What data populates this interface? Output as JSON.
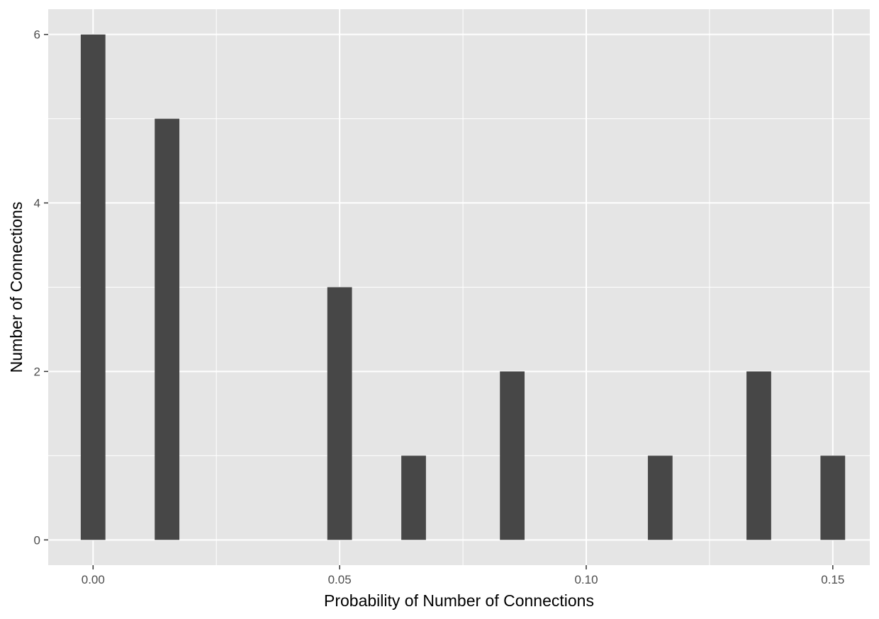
{
  "chart_data": {
    "type": "bar",
    "title": "",
    "xlabel": "Probability of Number of Connections",
    "ylabel": "Number of Connections",
    "xlim": [
      -0.0091,
      0.1575
    ],
    "ylim": [
      -0.3,
      6.3
    ],
    "x": [
      0.0,
      0.015,
      0.05,
      0.065,
      0.085,
      0.115,
      0.135,
      0.15
    ],
    "values": [
      6,
      5,
      3,
      1,
      2,
      1,
      2,
      1
    ],
    "bar_width": 0.005,
    "x_ticks": [
      0.0,
      0.05,
      0.1,
      0.15
    ],
    "x_tick_labels": [
      "0.00",
      "0.05",
      "0.10",
      "0.15"
    ],
    "x_minor_ticks": [
      0.025,
      0.075,
      0.125
    ],
    "y_ticks": [
      0,
      2,
      4,
      6
    ],
    "y_tick_labels": [
      "0",
      "2",
      "4",
      "6"
    ],
    "y_minor_ticks": [
      1,
      3,
      5
    ],
    "grid": true,
    "legend": "none",
    "colors": {
      "panel_background": "#e5e5e5",
      "grid": "#ffffff",
      "bar_fill": "#474747",
      "tick_text": "#4d4d4d",
      "tick_mark": "#333333",
      "axis_title": "#000000"
    }
  }
}
